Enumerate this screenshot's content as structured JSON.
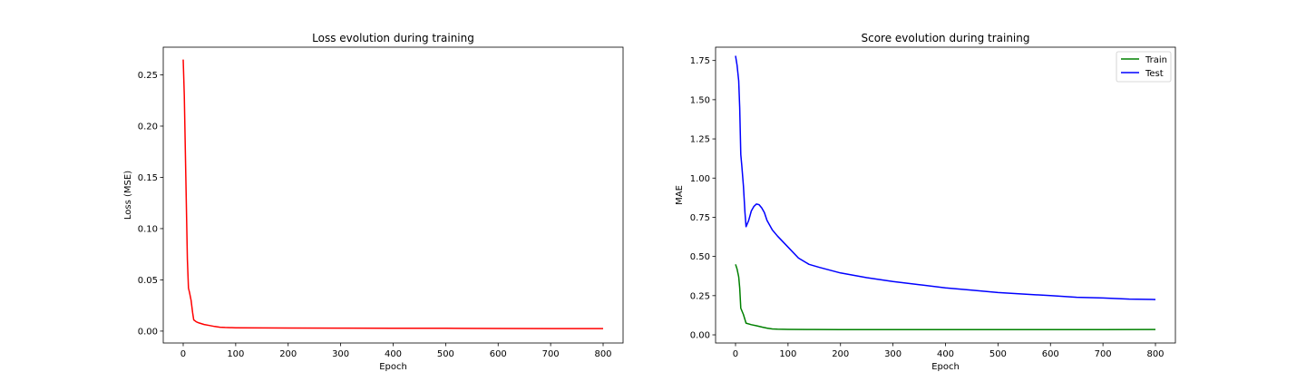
{
  "chart_data": [
    {
      "type": "line",
      "title": "Loss evolution during training",
      "xlabel": "Epoch",
      "ylabel": "Loss (MSE)",
      "xlim": [
        -38,
        838
      ],
      "ylim": [
        -0.0116,
        0.277
      ],
      "xticks": [
        0,
        100,
        200,
        300,
        400,
        500,
        600,
        700,
        800
      ],
      "yticks": [
        0.0,
        0.05,
        0.1,
        0.15,
        0.2,
        0.25
      ],
      "ytick_format": 2,
      "grid": false,
      "legend": null,
      "series": [
        {
          "color": "#ff0000",
          "x": [
            0,
            2,
            5,
            8,
            10,
            12,
            15,
            18,
            20,
            25,
            30,
            40,
            50,
            60,
            70,
            80,
            100,
            150,
            200,
            300,
            400,
            500,
            600,
            700,
            800
          ],
          "y": [
            0.265,
            0.23,
            0.15,
            0.07,
            0.042,
            0.038,
            0.03,
            0.018,
            0.011,
            0.009,
            0.008,
            0.0065,
            0.0055,
            0.0045,
            0.0038,
            0.0035,
            0.0033,
            0.0031,
            0.003,
            0.0029,
            0.0028,
            0.0027,
            0.0026,
            0.0025,
            0.0025
          ]
        }
      ]
    },
    {
      "type": "line",
      "title": "Score evolution during training",
      "xlabel": "Epoch",
      "ylabel": "MAE",
      "xlim": [
        -38,
        838
      ],
      "ylim": [
        -0.052,
        1.835
      ],
      "xticks": [
        0,
        100,
        200,
        300,
        400,
        500,
        600,
        700,
        800
      ],
      "yticks": [
        0.0,
        0.25,
        0.5,
        0.75,
        1.0,
        1.25,
        1.5,
        1.75
      ],
      "ytick_format": 2,
      "grid": false,
      "legend": "top-right",
      "series": [
        {
          "name": "Train",
          "color": "#008000",
          "x": [
            0,
            3,
            6,
            8,
            10,
            15,
            20,
            30,
            40,
            50,
            60,
            70,
            80,
            100,
            150,
            200,
            300,
            400,
            500,
            600,
            700,
            800
          ],
          "y": [
            0.45,
            0.42,
            0.37,
            0.3,
            0.17,
            0.13,
            0.075,
            0.065,
            0.058,
            0.05,
            0.043,
            0.038,
            0.036,
            0.035,
            0.034,
            0.033,
            0.033,
            0.033,
            0.033,
            0.033,
            0.033,
            0.034
          ]
        },
        {
          "name": "Test",
          "color": "#0000ff",
          "x": [
            0,
            3,
            6,
            8,
            10,
            12,
            15,
            18,
            20,
            25,
            30,
            35,
            40,
            45,
            50,
            55,
            60,
            70,
            80,
            100,
            120,
            140,
            160,
            200,
            250,
            300,
            350,
            400,
            450,
            500,
            550,
            600,
            650,
            700,
            750,
            800
          ],
          "y": [
            1.78,
            1.72,
            1.62,
            1.45,
            1.15,
            1.08,
            0.95,
            0.78,
            0.69,
            0.73,
            0.79,
            0.82,
            0.835,
            0.83,
            0.81,
            0.78,
            0.73,
            0.67,
            0.63,
            0.56,
            0.49,
            0.45,
            0.43,
            0.395,
            0.365,
            0.34,
            0.32,
            0.3,
            0.285,
            0.27,
            0.26,
            0.25,
            0.24,
            0.235,
            0.228,
            0.225
          ]
        }
      ]
    }
  ]
}
